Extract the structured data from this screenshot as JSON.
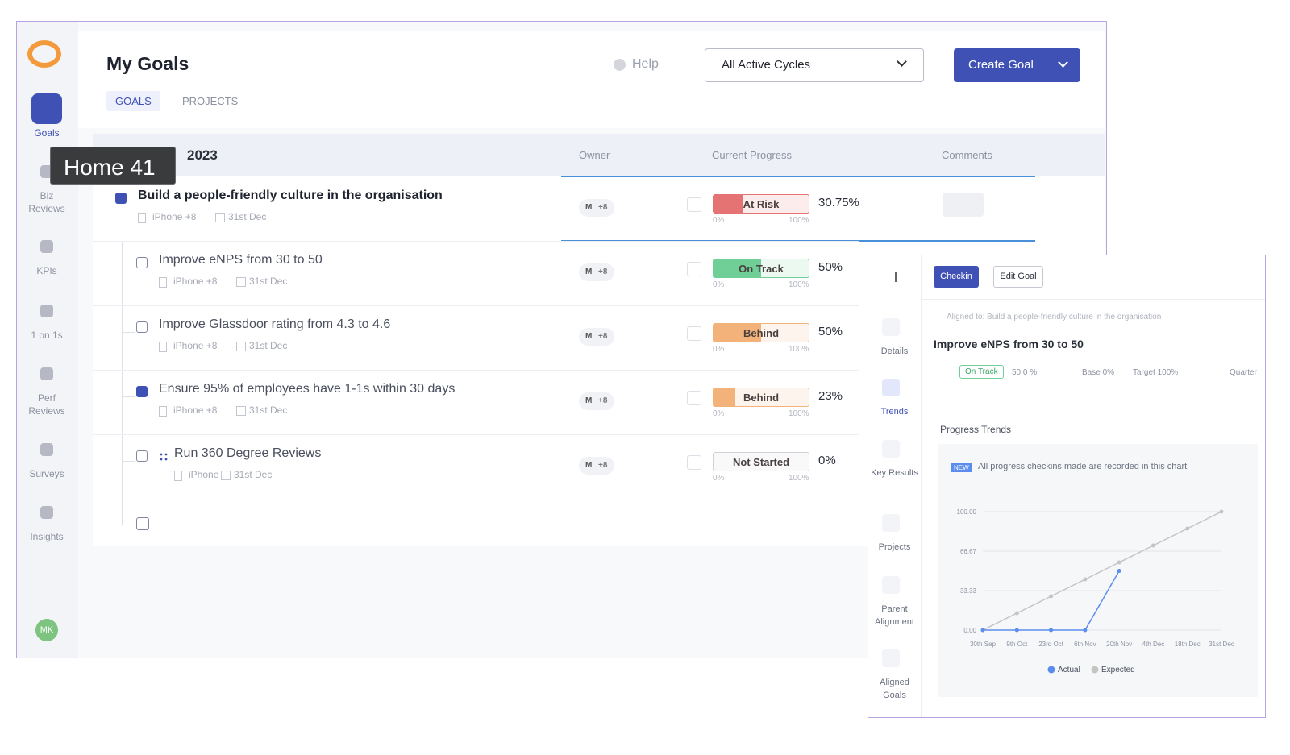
{
  "tooltip": "Home 41",
  "sidebar": {
    "nav": [
      "Goals",
      "Biz Reviews",
      "KPIs",
      "1 on 1s",
      "Perf Reviews",
      "Surveys",
      "Insights"
    ],
    "avatar": "MK"
  },
  "header": {
    "title": "My Goals",
    "help": "Help",
    "cycle": "All Active Cycles",
    "create_button": "Create Goal"
  },
  "tabs": [
    "GOALS",
    "PROJECTS"
  ],
  "table": {
    "group": "2023",
    "columns": [
      "Owner",
      "Current Progress",
      "Comments"
    ],
    "rows": [
      {
        "title": "Build a people-friendly culture in the organisation",
        "device": "iPhone +8",
        "due": "31st Dec",
        "owner": "M",
        "owner_more": "+8",
        "status": "At Risk",
        "color": "#e57373",
        "progress": 30.75,
        "progress_label": "30.75%",
        "scale_min": "0%",
        "scale_max": "100%"
      },
      {
        "title": "Improve eNPS from 30 to 50",
        "device": "iPhone +8",
        "due": "31st Dec",
        "owner": "M",
        "owner_more": "+8",
        "status": "On Track",
        "color": "#6fcf97",
        "progress": 50,
        "progress_label": "50%",
        "scale_min": "0%",
        "scale_max": "100%"
      },
      {
        "title": "Improve Glassdoor rating from 4.3 to 4.6",
        "device": "iPhone +8",
        "due": "31st Dec",
        "owner": "M",
        "owner_more": "+8",
        "status": "Behind",
        "color": "#f2b27a",
        "progress": 50,
        "progress_label": "50%",
        "scale_min": "0%",
        "scale_max": "100%"
      },
      {
        "title": "Ensure 95% of employees have 1-1s within 30 days",
        "device": "iPhone +8",
        "due": "31st Dec",
        "owner": "M",
        "owner_more": "+8",
        "status": "Behind",
        "color": "#f2b27a",
        "progress": 23,
        "progress_label": "23%",
        "scale_min": "0%",
        "scale_max": "100%"
      },
      {
        "title": "Run 360 Degree Reviews",
        "device": "iPhone",
        "due": "31st Dec",
        "owner": "M",
        "owner_more": "+8",
        "status": "Not Started",
        "color": "#cfd2d8",
        "progress": 0,
        "progress_label": "0%",
        "scale_min": "0%",
        "scale_max": "100%"
      }
    ]
  },
  "panel": {
    "buttons": [
      "Checkin",
      "Edit Goal"
    ],
    "nav": [
      "Details",
      "Trends",
      "Key Results",
      "Projects",
      "Parent Alignment",
      "Aligned Goals"
    ],
    "aligned": "Aligned to: Build a people-friendly culture in the organisation",
    "title": "Improve eNPS from 30 to 50",
    "status": "On Track",
    "progress": "50.0 %",
    "base": "Base 0%",
    "target": "Target 100%",
    "period": "Quarter",
    "section": "Progress Trends",
    "badge": "NEW",
    "note": "All progress checkins made are recorded in this chart"
  },
  "chart_data": {
    "type": "line",
    "categories": [
      "30th Sep",
      "9th Oct",
      "23rd Oct",
      "6th Nov",
      "20th Nov",
      "4th Dec",
      "18th Dec",
      "31st Dec"
    ],
    "series": [
      {
        "name": "Actual",
        "color": "#5b8def",
        "values": [
          0,
          0,
          0,
          0,
          50,
          null,
          null,
          null
        ]
      },
      {
        "name": "Expected",
        "color": "#c4c4c4",
        "values": [
          0,
          14.29,
          28.57,
          42.86,
          57.14,
          71.43,
          85.71,
          100
        ]
      }
    ],
    "ylim": [
      0,
      100
    ],
    "yticks": [
      {
        "value": 0,
        "label": "0.00"
      },
      33.33,
      66.67,
      {
        "value": 100,
        "label": "100.00"
      }
    ],
    "grid": true
  }
}
